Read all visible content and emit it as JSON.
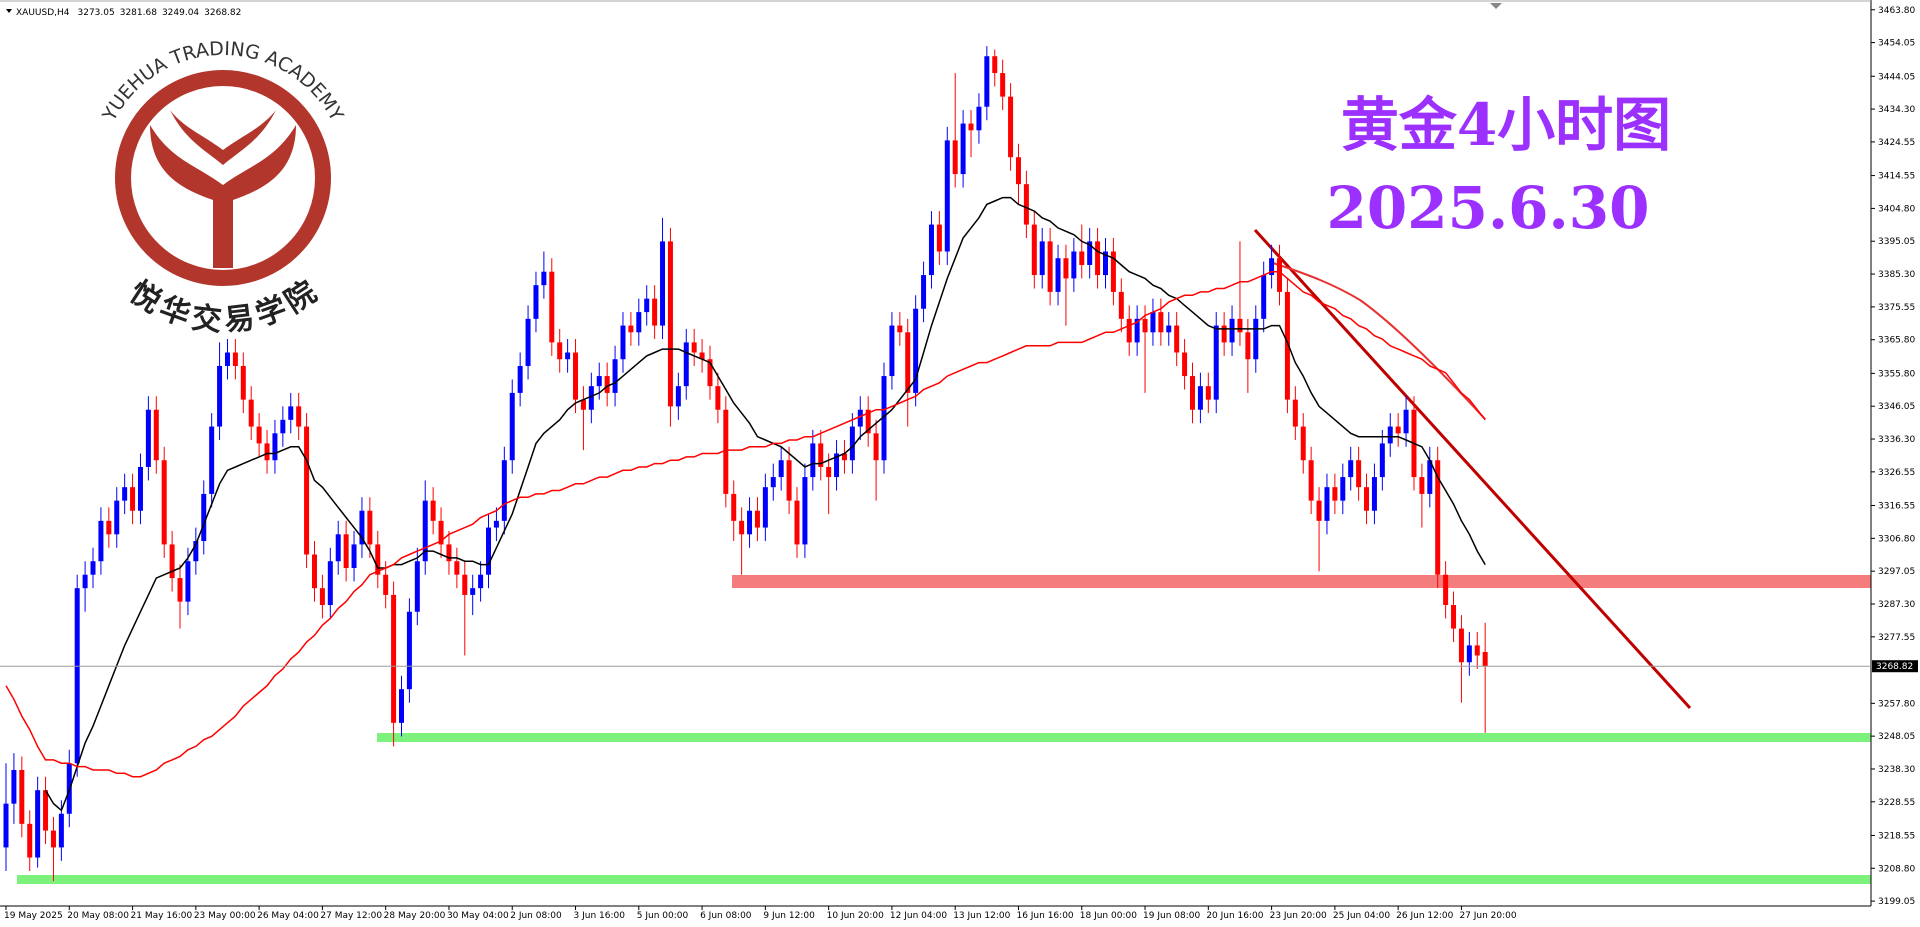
{
  "chart_data": {
    "type": "candlestick",
    "symbol": "XAUUSD,H4",
    "title": "黄金4小时图",
    "subtitle": "2025.6.30",
    "watermark": {
      "text": "YUEHUA TRADING ACADEMY",
      "label": "悦华交易学院"
    },
    "up_color": "#0000ff",
    "down_color": "#ff0000",
    "categories": [
      "19 May 2025",
      null,
      null,
      null,
      null,
      null,
      null,
      null,
      "20 May 08:00",
      null,
      null,
      null,
      null,
      null,
      null,
      null,
      "21 May 16:00",
      null,
      null,
      null,
      null,
      null,
      null,
      null,
      "23 May 00:00",
      null,
      null,
      null,
      null,
      null,
      null,
      null,
      "26 May 04:00",
      null,
      null,
      null,
      null,
      null,
      null,
      null,
      "27 May 12:00",
      null,
      null,
      null,
      null,
      null,
      null,
      null,
      "28 May 20:00",
      null,
      null,
      null,
      null,
      null,
      null,
      null,
      "30 May 04:00",
      null,
      null,
      null,
      null,
      null,
      null,
      null,
      "2 Jun 08:00",
      null,
      null,
      null,
      null,
      null,
      null,
      null,
      "3 Jun 16:00",
      null,
      null,
      null,
      null,
      null,
      null,
      null,
      "5 Jun 00:00",
      null,
      null,
      null,
      null,
      null,
      null,
      null,
      "6 Jun 08:00",
      null,
      null,
      null,
      null,
      null,
      null,
      null,
      "9 Jun 12:00",
      null,
      null,
      null,
      null,
      null,
      null,
      null,
      "10 Jun 20:00",
      null,
      null,
      null,
      null,
      null,
      null,
      null,
      "12 Jun 04:00",
      null,
      null,
      null,
      null,
      null,
      null,
      null,
      "13 Jun 12:00",
      null,
      null,
      null,
      null,
      null,
      null,
      null,
      "16 Jun 16:00",
      null,
      null,
      null,
      null,
      null,
      null,
      null,
      "18 Jun 00:00",
      null,
      null,
      null,
      null,
      null,
      null,
      null,
      "19 Jun 08:00",
      null,
      null,
      null,
      null,
      null,
      null,
      null,
      "20 Jun 16:00",
      null,
      null,
      null,
      null,
      null,
      null,
      null,
      "23 Jun 20:00",
      null,
      null,
      null,
      null,
      null,
      null,
      null,
      "25 Jun 04:00",
      null,
      null,
      null,
      null,
      null,
      null,
      null,
      "26 Jun 12:00",
      null,
      null,
      null,
      null,
      null,
      null,
      null,
      "27 Jun 20:00",
      null,
      null,
      null
    ],
    "open": [
      3215,
      3228,
      3238,
      3222,
      3212,
      3232,
      3220,
      3215,
      3225,
      3240,
      3292,
      3296,
      3300,
      3312,
      3308,
      3318,
      3322,
      3315,
      3328,
      3345,
      3330,
      3305,
      3295,
      3288,
      3300,
      3306,
      3320,
      3340,
      3358,
      3362,
      3358,
      3348,
      3340,
      3335,
      3330,
      3338,
      3342,
      3346,
      3340,
      3302,
      3292,
      3287,
      3300,
      3308,
      3298,
      3305,
      3315,
      3305,
      3296,
      3290,
      3252,
      3262,
      3285,
      3300,
      3318,
      3312,
      3305,
      3300,
      3296,
      3290,
      3292,
      3296,
      3310,
      3312,
      3330,
      3350,
      3358,
      3372,
      3382,
      3386,
      3365,
      3360,
      3362,
      3348,
      3345,
      3352,
      3355,
      3350,
      3360,
      3370,
      3368,
      3374,
      3378,
      3370,
      3395,
      3346,
      3352,
      3365,
      3362,
      3360,
      3352,
      3345,
      3320,
      3312,
      3308,
      3315,
      3310,
      3322,
      3325,
      3330,
      3318,
      3305,
      3325,
      3335,
      3328,
      3325,
      3332,
      3330,
      3340,
      3345,
      3338,
      3330,
      3355,
      3370,
      3368,
      3350,
      3375,
      3385,
      3400,
      3392,
      3425,
      3415,
      3430,
      3428,
      3435,
      3450,
      3445,
      3438,
      3420,
      3412,
      3400,
      3385,
      3395,
      3380,
      3390,
      3384,
      3392,
      3388,
      3395,
      3385,
      3392,
      3380,
      3372,
      3365,
      3372,
      3368,
      3374,
      3368,
      3370,
      3362,
      3355,
      3345,
      3352,
      3348,
      3370,
      3365,
      3372,
      3368,
      3360,
      3372,
      3385,
      3390,
      3380,
      3348,
      3340,
      3330,
      3318,
      3312,
      3322,
      3318,
      3325,
      3330,
      3322,
      3315,
      3325,
      3335,
      3340,
      3338,
      3345,
      3325,
      3320,
      3330,
      3296,
      3287,
      3280,
      3270,
      3275,
      3273.05
    ],
    "high": [
      3240,
      3243,
      3242,
      3226,
      3236,
      3236,
      3224,
      3229,
      3244,
      3296,
      3300,
      3304,
      3316,
      3316,
      3322,
      3326,
      3326,
      3332,
      3349,
      3349,
      3334,
      3309,
      3299,
      3304,
      3310,
      3324,
      3344,
      3365,
      3366,
      3366,
      3362,
      3352,
      3344,
      3339,
      3342,
      3346,
      3350,
      3350,
      3344,
      3306,
      3296,
      3304,
      3312,
      3312,
      3309,
      3319,
      3319,
      3309,
      3300,
      3294,
      3266,
      3289,
      3304,
      3324,
      3322,
      3316,
      3309,
      3304,
      3300,
      3296,
      3300,
      3314,
      3316,
      3334,
      3354,
      3362,
      3376,
      3386,
      3392,
      3390,
      3369,
      3366,
      3366,
      3352,
      3356,
      3359,
      3359,
      3364,
      3374,
      3374,
      3378,
      3382,
      3382,
      3402,
      3399,
      3356,
      3369,
      3369,
      3366,
      3364,
      3356,
      3349,
      3324,
      3316,
      3319,
      3319,
      3326,
      3329,
      3334,
      3334,
      3322,
      3329,
      3339,
      3339,
      3332,
      3336,
      3336,
      3344,
      3349,
      3349,
      3342,
      3359,
      3374,
      3374,
      3372,
      3379,
      3389,
      3404,
      3404,
      3429,
      3445,
      3434,
      3434,
      3439,
      3453,
      3452,
      3449,
      3442,
      3424,
      3416,
      3404,
      3399,
      3399,
      3394,
      3394,
      3396,
      3400,
      3399,
      3399,
      3396,
      3396,
      3384,
      3376,
      3376,
      3376,
      3378,
      3378,
      3374,
      3374,
      3366,
      3359,
      3356,
      3356,
      3374,
      3374,
      3376,
      3395,
      3372,
      3376,
      3389,
      3394,
      3394,
      3384,
      3352,
      3344,
      3334,
      3322,
      3326,
      3326,
      3329,
      3334,
      3334,
      3326,
      3329,
      3339,
      3344,
      3344,
      3349,
      3349,
      3329,
      3334,
      3334,
      3300,
      3291,
      3284,
      3279,
      3279,
      3281.68
    ],
    "low": [
      3208,
      3222,
      3218,
      3208,
      3209,
      3216,
      3205,
      3211,
      3221,
      3236,
      3285,
      3292,
      3296,
      3304,
      3304,
      3314,
      3311,
      3311,
      3324,
      3326,
      3301,
      3291,
      3280,
      3284,
      3296,
      3302,
      3316,
      3336,
      3354,
      3354,
      3344,
      3336,
      3331,
      3326,
      3326,
      3334,
      3338,
      3336,
      3298,
      3288,
      3283,
      3283,
      3296,
      3294,
      3294,
      3301,
      3301,
      3292,
      3286,
      3245,
      3248,
      3258,
      3281,
      3296,
      3308,
      3301,
      3296,
      3292,
      3272,
      3284,
      3288,
      3292,
      3306,
      3308,
      3326,
      3346,
      3354,
      3368,
      3378,
      3361,
      3356,
      3356,
      3344,
      3333,
      3341,
      3348,
      3346,
      3346,
      3356,
      3364,
      3364,
      3370,
      3366,
      3366,
      3340,
      3342,
      3348,
      3358,
      3356,
      3348,
      3341,
      3316,
      3306,
      3296,
      3304,
      3306,
      3306,
      3318,
      3321,
      3314,
      3301,
      3301,
      3321,
      3324,
      3314,
      3321,
      3326,
      3326,
      3336,
      3334,
      3318,
      3326,
      3351,
      3364,
      3340,
      3346,
      3371,
      3381,
      3388,
      3388,
      3411,
      3411,
      3420,
      3424,
      3431,
      3441,
      3434,
      3416,
      3406,
      3396,
      3381,
      3381,
      3376,
      3376,
      3370,
      3380,
      3384,
      3384,
      3381,
      3381,
      3376,
      3368,
      3361,
      3361,
      3350,
      3364,
      3364,
      3364,
      3358,
      3351,
      3341,
      3341,
      3344,
      3344,
      3361,
      3361,
      3364,
      3350,
      3356,
      3368,
      3381,
      3376,
      3344,
      3336,
      3326,
      3314,
      3297,
      3308,
      3314,
      3314,
      3321,
      3318,
      3311,
      3311,
      3321,
      3331,
      3334,
      3334,
      3321,
      3310,
      3316,
      3292,
      3283,
      3276,
      3258,
      3266,
      3268,
      3249.04
    ],
    "close": [
      3228,
      3238,
      3222,
      3212,
      3232,
      3220,
      3215,
      3225,
      3240,
      3292,
      3296,
      3300,
      3312,
      3308,
      3318,
      3322,
      3315,
      3328,
      3345,
      3330,
      3305,
      3295,
      3288,
      3300,
      3306,
      3320,
      3340,
      3358,
      3362,
      3358,
      3348,
      3340,
      3335,
      3330,
      3338,
      3342,
      3346,
      3340,
      3302,
      3292,
      3287,
      3300,
      3308,
      3298,
      3305,
      3315,
      3305,
      3296,
      3290,
      3252,
      3262,
      3285,
      3300,
      3318,
      3312,
      3305,
      3300,
      3296,
      3290,
      3292,
      3296,
      3310,
      3312,
      3330,
      3350,
      3358,
      3372,
      3382,
      3386,
      3365,
      3360,
      3362,
      3348,
      3345,
      3352,
      3355,
      3350,
      3360,
      3370,
      3368,
      3374,
      3378,
      3370,
      3395,
      3346,
      3352,
      3365,
      3362,
      3360,
      3352,
      3345,
      3320,
      3312,
      3308,
      3315,
      3310,
      3322,
      3325,
      3330,
      3318,
      3305,
      3325,
      3335,
      3328,
      3325,
      3332,
      3330,
      3340,
      3345,
      3338,
      3330,
      3355,
      3370,
      3368,
      3350,
      3375,
      3385,
      3400,
      3392,
      3425,
      3415,
      3430,
      3428,
      3435,
      3450,
      3445,
      3438,
      3420,
      3412,
      3400,
      3385,
      3395,
      3380,
      3390,
      3384,
      3392,
      3388,
      3395,
      3385,
      3392,
      3380,
      3372,
      3365,
      3372,
      3368,
      3374,
      3368,
      3370,
      3362,
      3355,
      3345,
      3352,
      3348,
      3370,
      3365,
      3372,
      3368,
      3360,
      3372,
      3385,
      3390,
      3380,
      3348,
      3340,
      3330,
      3318,
      3312,
      3322,
      3318,
      3325,
      3330,
      3322,
      3315,
      3325,
      3335,
      3340,
      3338,
      3345,
      3325,
      3320,
      3330,
      3296,
      3287,
      3280,
      3270,
      3275,
      3272,
      3268.82
    ],
    "series": [
      {
        "color": "#000000",
        "values": [
          null,
          null,
          null,
          null,
          null,
          3232,
          3228,
          3226,
          3232,
          3239,
          3246,
          3251,
          3257,
          3263,
          3269,
          3275,
          3280,
          3285,
          3290,
          3295,
          3296,
          3297,
          3298,
          3301,
          3305,
          3311,
          3317,
          3323,
          3327,
          3328,
          3329,
          3330,
          3331,
          3332,
          3332,
          3333,
          3334,
          3334,
          3330,
          3324,
          3322,
          3319,
          3316,
          3313,
          3310,
          3307,
          3303,
          3298,
          3298,
          3299,
          3299,
          3300,
          3301,
          3303,
          3303,
          3302,
          3301,
          3301,
          3300,
          3300,
          3299,
          3299,
          3304,
          3309,
          3314,
          3321,
          3328,
          3335,
          3338,
          3340,
          3342,
          3345,
          3347,
          3348,
          3349,
          3350,
          3352,
          3353,
          3355,
          3357,
          3359,
          3361,
          3362,
          3363,
          3363,
          3363,
          3362,
          3361,
          3360,
          3359,
          3355,
          3351,
          3347,
          3344,
          3341,
          3337,
          3336,
          3335,
          3334,
          3332,
          3330,
          3328,
          3329,
          3329,
          3330,
          3331,
          3332,
          3334,
          3337,
          3339,
          3341,
          3343,
          3345,
          3348,
          3351,
          3354,
          3362,
          3370,
          3377,
          3384,
          3390,
          3396,
          3399,
          3402,
          3406,
          3407,
          3408,
          3408,
          3406,
          3405,
          3404,
          3402,
          3401,
          3399,
          3398,
          3397,
          3395,
          3394,
          3392,
          3391,
          3390,
          3388,
          3386,
          3385,
          3384,
          3382,
          3381,
          3379,
          3378,
          3376,
          3374,
          3372,
          3370,
          3369,
          3369,
          3369,
          3369,
          3369,
          3369,
          3369,
          3370,
          3370,
          3365,
          3359,
          3355,
          3350,
          3346,
          3344,
          3342,
          3340,
          3338,
          3337,
          3337,
          3337,
          3337,
          3337,
          3337,
          3336,
          3335,
          3334,
          3330,
          3325,
          3321,
          3317,
          3312,
          3308,
          3303,
          3299
        ]
      },
      {
        "color": "#ff0000",
        "values": [
          3263,
          3259,
          3254,
          3250,
          3245,
          3241,
          3241,
          3240,
          3240,
          3239,
          3239,
          3238,
          3238,
          3238,
          3237,
          3237,
          3236,
          3236,
          3237,
          3238,
          3240,
          3241,
          3242,
          3244,
          3245,
          3247,
          3248,
          3250,
          3252,
          3254,
          3257,
          3259,
          3261,
          3263,
          3266,
          3268,
          3271,
          3273,
          3276,
          3278,
          3281,
          3283,
          3286,
          3288,
          3291,
          3293,
          3296,
          3297,
          3298,
          3299,
          3301,
          3302,
          3303,
          3304,
          3305,
          3306,
          3308,
          3309,
          3310,
          3311,
          3313,
          3314,
          3315,
          3317,
          3318,
          3319,
          3319,
          3320,
          3320,
          3321,
          3321,
          3322,
          3323,
          3323,
          3324,
          3325,
          3325,
          3326,
          3327,
          3327,
          3328,
          3328,
          3329,
          3329,
          3330,
          3330,
          3331,
          3331,
          3332,
          3332,
          3332,
          3333,
          3333,
          3333,
          3334,
          3334,
          3334,
          3335,
          3335,
          3336,
          3336,
          3337,
          3337,
          3338,
          3339,
          3340,
          3341,
          3342,
          3343,
          3344,
          3345,
          3345,
          3346,
          3347,
          3348,
          3349,
          3351,
          3352,
          3353,
          3355,
          3356,
          3357,
          3358,
          3359,
          3359,
          3360,
          3361,
          3362,
          3363,
          3364,
          3364,
          3364,
          3364,
          3365,
          3365,
          3365,
          3365,
          3366,
          3367,
          3368,
          3368,
          3369,
          3370,
          3371,
          3373,
          3374,
          3375,
          3377,
          3378,
          3379,
          3379,
          3380,
          3380,
          3381,
          3381,
          3382,
          3383,
          3383,
          3384,
          3385,
          3386,
          3386,
          3384,
          3382,
          3380,
          3379,
          3377,
          3376,
          3375,
          3373,
          3372,
          3370,
          3369,
          3367,
          3366,
          3364,
          3363,
          3362,
          3361,
          3360,
          3358,
          3357,
          3356,
          3353,
          3350,
          3348,
          3345,
          3342
        ]
      }
    ],
    "ylim": [
      3197.6,
      3466.7
    ],
    "yticks": [
      {
        "value": 3463.8,
        "label": "3463.80"
      },
      3454.05,
      3444.05,
      {
        "value": 3434.3,
        "label": "3434.30"
      },
      3424.55,
      3414.55,
      {
        "value": 3404.8,
        "label": "3404.80"
      },
      3395.05,
      {
        "value": 3385.3,
        "label": "3385.30"
      },
      3375.55,
      {
        "value": 3365.8,
        "label": "3365.80"
      },
      {
        "value": 3355.8,
        "label": "3355.80"
      },
      3346.05,
      {
        "value": 3336.3,
        "label": "3336.30"
      },
      3326.55,
      3316.55,
      {
        "value": 3306.8,
        "label": "3306.80"
      },
      3297.05,
      {
        "value": 3287.3,
        "label": "3287.30"
      },
      3277.55,
      {
        "value": 3257.8,
        "label": "3257.80"
      },
      3248.05,
      {
        "value": 3238.3,
        "label": "3238.30"
      },
      3228.55,
      3218.55,
      {
        "value": 3208.8,
        "label": "3208.80"
      },
      3199.05
    ]
  }
}
